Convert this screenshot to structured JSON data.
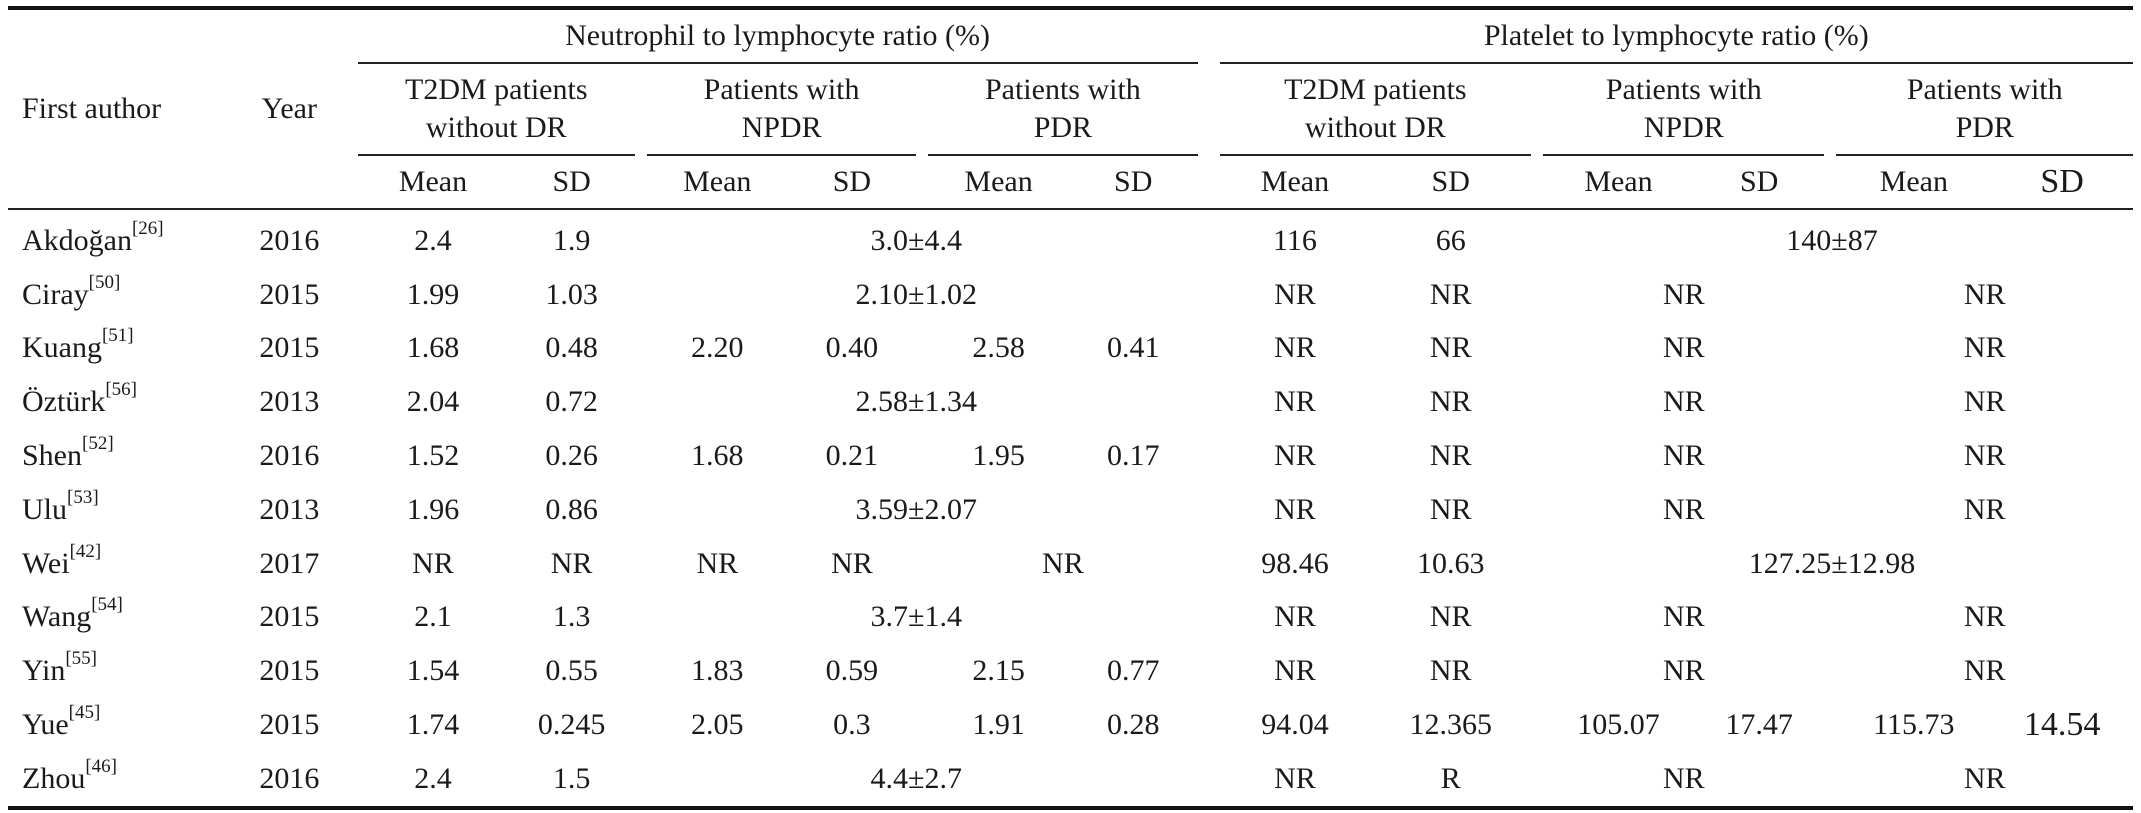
{
  "header": {
    "first_author": "First author",
    "year": "Year",
    "nlr_group": "Neutrophil to lymphocyte ratio (%)",
    "plr_group": "Platelet to lymphocyte ratio (%)",
    "sub_t2dm": "T2DM patients without DR",
    "sub_npdr": "Patients with NPDR",
    "sub_pdr": "Patients with PDR",
    "mean": "Mean",
    "sd": "SD"
  },
  "rows": [
    {
      "author": "Akdoğan",
      "ref": "[26]",
      "year": "2016",
      "n_t_mean": "2.4",
      "n_t_sd": "1.9",
      "n_merged": "3.0±4.4",
      "p_t_mean": "116",
      "p_t_sd": "66",
      "p_merged": "140±87"
    },
    {
      "author": "Ciray",
      "ref": "[50]",
      "year": "2015",
      "n_t_mean": "1.99",
      "n_t_sd": "1.03",
      "n_merged": "2.10±1.02",
      "p_t_mean": "NR",
      "p_t_sd": "NR",
      "p_npdr": "NR",
      "p_pdr": "NR"
    },
    {
      "author": "Kuang",
      "ref": "[51]",
      "year": "2015",
      "n_t_mean": "1.68",
      "n_t_sd": "0.48",
      "n_npdr_mean": "2.20",
      "n_npdr_sd": "0.40",
      "n_pdr_mean": "2.58",
      "n_pdr_sd": "0.41",
      "p_t_mean": "NR",
      "p_t_sd": "NR",
      "p_npdr": "NR",
      "p_pdr": "NR"
    },
    {
      "author": "Öztürk",
      "ref": "[56]",
      "year": "2013",
      "n_t_mean": "2.04",
      "n_t_sd": "0.72",
      "n_merged": "2.58±1.34",
      "p_t_mean": "NR",
      "p_t_sd": "NR",
      "p_npdr": "NR",
      "p_pdr": "NR"
    },
    {
      "author": "Shen",
      "ref": "[52]",
      "year": "2016",
      "n_t_mean": "1.52",
      "n_t_sd": "0.26",
      "n_npdr_mean": "1.68",
      "n_npdr_sd": "0.21",
      "n_pdr_mean": "1.95",
      "n_pdr_sd": "0.17",
      "p_t_mean": "NR",
      "p_t_sd": "NR",
      "p_npdr": "NR",
      "p_pdr": "NR"
    },
    {
      "author": "Ulu",
      "ref": "[53]",
      "year": "2013",
      "n_t_mean": "1.96",
      "n_t_sd": "0.86",
      "n_merged": "3.59±2.07",
      "p_t_mean": "NR",
      "p_t_sd": "NR",
      "p_npdr": "NR",
      "p_pdr": "NR"
    },
    {
      "author": "Wei",
      "ref": "[42]",
      "year": "2017",
      "n_t_mean": "NR",
      "n_t_sd": "NR",
      "n_npdr_mean": "NR",
      "n_npdr_sd": "NR",
      "n_pdr": "NR",
      "p_t_mean": "98.46",
      "p_t_sd": "10.63",
      "p_merged": "127.25±12.98"
    },
    {
      "author": "Wang",
      "ref": "[54]",
      "year": "2015",
      "n_t_mean": "2.1",
      "n_t_sd": "1.3",
      "n_merged": "3.7±1.4",
      "p_t_mean": "NR",
      "p_t_sd": "NR",
      "p_npdr": "NR",
      "p_pdr": "NR"
    },
    {
      "author": "Yin",
      "ref": "[55]",
      "year": "2015",
      "n_t_mean": "1.54",
      "n_t_sd": "0.55",
      "n_npdr_mean": "1.83",
      "n_npdr_sd": "0.59",
      "n_pdr_mean": "2.15",
      "n_pdr_sd": "0.77",
      "p_t_mean": "NR",
      "p_t_sd": "NR",
      "p_npdr": "NR",
      "p_pdr": "NR"
    },
    {
      "author": "Yue",
      "ref": "[45]",
      "year": "2015",
      "n_t_mean": "1.74",
      "n_t_sd": "0.245",
      "n_npdr_mean": "2.05",
      "n_npdr_sd": "0.3",
      "n_pdr_mean": "1.91",
      "n_pdr_sd": "0.28",
      "p_t_mean": "94.04",
      "p_t_sd": "12.365",
      "p_npdr_mean": "105.07",
      "p_npdr_sd": "17.47",
      "p_pdr_mean": "115.73",
      "p_pdr_sd": "14.54"
    },
    {
      "author": "Zhou",
      "ref": "[46]",
      "year": "2016",
      "n_t_mean": "2.4",
      "n_t_sd": "1.5",
      "n_merged": "4.4±2.7",
      "p_t_mean": "NR",
      "p_t_sd": "R",
      "p_npdr": "NR",
      "p_pdr": "NR"
    }
  ]
}
